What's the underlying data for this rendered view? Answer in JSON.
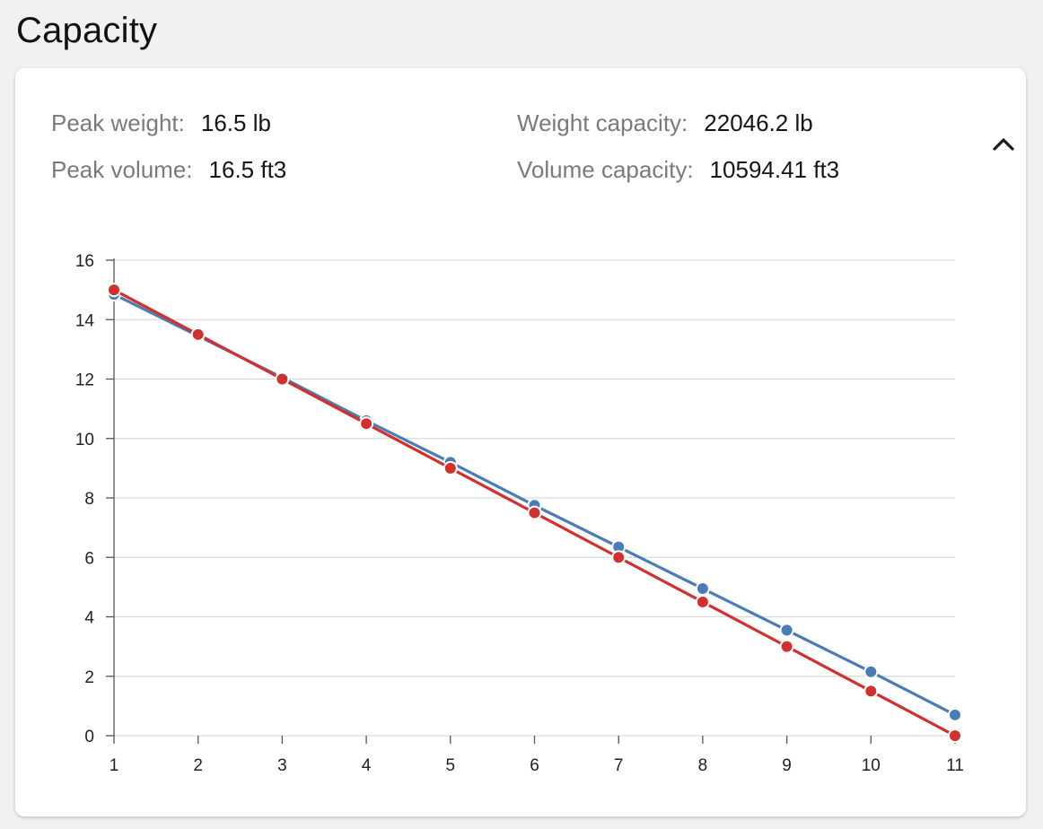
{
  "page": {
    "title": "Capacity"
  },
  "stats": {
    "peak_weight_label": "Peak weight:",
    "peak_weight_value": "16.5 lb",
    "peak_volume_label": "Peak volume:",
    "peak_volume_value": "16.5 ft3",
    "weight_capacity_label": "Weight capacity:",
    "weight_capacity_value": "22046.2 lb",
    "volume_capacity_label": "Volume capacity:",
    "volume_capacity_value": "10594.41 ft3"
  },
  "collapse_icon": "chevron-up-icon",
  "colors": {
    "series_blue": "#4a7db5",
    "series_red": "#d2302c",
    "grid": "#d9d9d9",
    "axis": "#555555"
  },
  "chart_data": {
    "type": "line",
    "title": "",
    "xlabel": "",
    "ylabel": "",
    "x": [
      1,
      2,
      3,
      4,
      5,
      6,
      7,
      8,
      9,
      10,
      11
    ],
    "xlim": [
      1,
      11
    ],
    "ylim": [
      0,
      16
    ],
    "x_ticks": [
      1,
      2,
      3,
      4,
      5,
      6,
      7,
      8,
      9,
      10,
      11
    ],
    "y_ticks": [
      0,
      2,
      4,
      6,
      8,
      10,
      12,
      14,
      16
    ],
    "grid": true,
    "legend": "none",
    "series": [
      {
        "color": "#4a7db5",
        "values": [
          14.85,
          13.45,
          12.05,
          10.6,
          9.2,
          7.75,
          6.35,
          4.95,
          3.55,
          2.15,
          0.7
        ]
      },
      {
        "color": "#d2302c",
        "values": [
          15.0,
          13.5,
          12.0,
          10.5,
          9.0,
          7.5,
          6.0,
          4.5,
          3.0,
          1.5,
          0.0
        ]
      }
    ]
  }
}
